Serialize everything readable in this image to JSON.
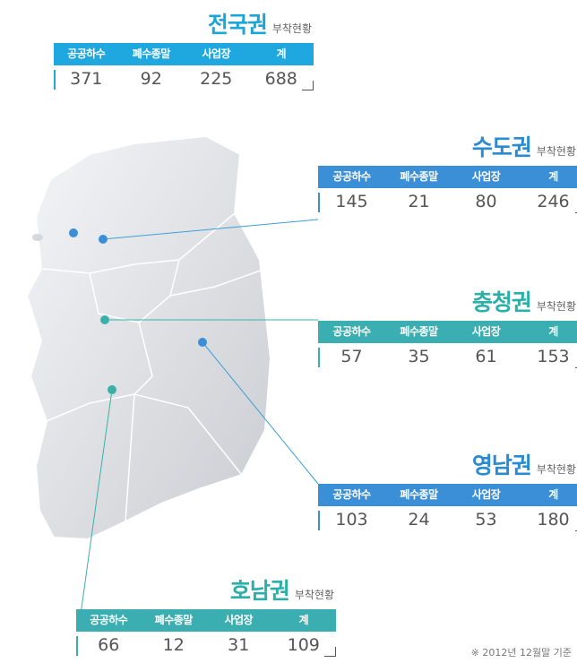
{
  "headers": [
    "공공하수",
    "폐수종말",
    "사업장",
    "계"
  ],
  "panels": [
    {
      "title": "전국권",
      "subtitle": "부착현황",
      "values": [
        371,
        92,
        225,
        688
      ]
    },
    {
      "title": "수도권",
      "subtitle": "부착현황",
      "values": [
        145,
        21,
        80,
        246
      ]
    },
    {
      "title": "충청권",
      "subtitle": "부착현황",
      "values": [
        57,
        35,
        61,
        153
      ]
    },
    {
      "title": "영남권",
      "subtitle": "부착현황",
      "values": [
        103,
        24,
        53,
        180
      ]
    },
    {
      "title": "호남권",
      "subtitle": "부착현황",
      "values": [
        66,
        12,
        31,
        109
      ]
    }
  ],
  "footnote": "※ 2012년 12월말 기준"
}
